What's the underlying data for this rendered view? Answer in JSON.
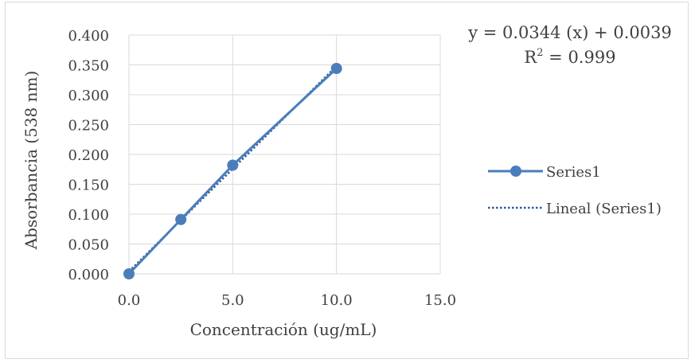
{
  "chart_data": {
    "type": "scatter",
    "x": [
      0.0,
      2.5,
      5.0,
      10.0
    ],
    "series": [
      {
        "name": "Series1",
        "values": [
          0.0,
          0.091,
          0.182,
          0.344
        ],
        "color": "#4a7ebb",
        "style": "line-markers"
      }
    ],
    "trendline": {
      "name": "Lineal (Series1)",
      "type": "linear",
      "slope": 0.0344,
      "intercept": 0.0039,
      "color": "#2e5f9a",
      "style": "dotted"
    },
    "equation": "y = 0.0344 (x) + 0.0039",
    "r2_label": "R",
    "r2_sup": "2",
    "r2_value": " = 0.999",
    "xlabel": "Concentración (ug/mL)",
    "ylabel": "Absorbancia (538 nm)",
    "xlim": [
      0,
      15
    ],
    "ylim": [
      0,
      0.4
    ],
    "x_ticks": [
      "0.0",
      "5.0",
      "10.0",
      "15.0"
    ],
    "y_ticks": [
      "0.000",
      "0.050",
      "0.100",
      "0.150",
      "0.200",
      "0.250",
      "0.300",
      "0.350",
      "0.400"
    ],
    "grid": true,
    "legend_position": "right",
    "legend": [
      "Series1",
      "Lineal (Series1)"
    ]
  }
}
